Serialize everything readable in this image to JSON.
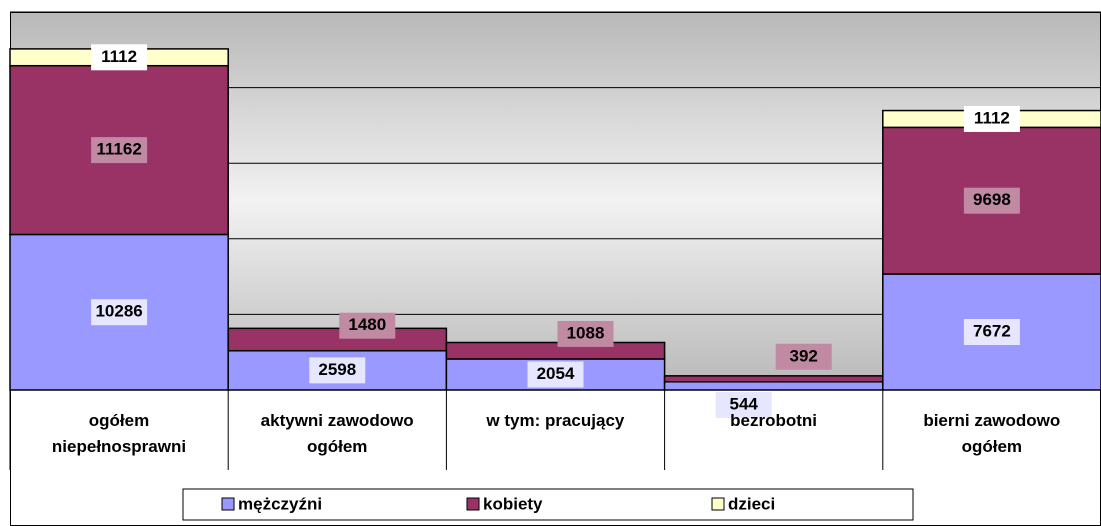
{
  "chart_data": {
    "type": "stacked_bar",
    "categories": [
      "ogółem\nniepełnosprawni",
      "aktywni zawodowo\nogółem",
      "w tym: pracujący",
      "bezrobotni",
      "bierni zawodowo\nogółem"
    ],
    "series": [
      {
        "name": "mężczyźni",
        "color": "#9999ff",
        "values": [
          10286,
          2598,
          2054,
          544,
          7672
        ]
      },
      {
        "name": "kobiety",
        "color": "#993366",
        "values": [
          11162,
          1480,
          1088,
          392,
          9698
        ]
      },
      {
        "name": "dzieci",
        "color": "#ffffcc",
        "values": [
          1112,
          null,
          null,
          null,
          1112
        ]
      }
    ],
    "ylim": [
      0,
      25000
    ],
    "yticks": [
      0,
      5000,
      10000,
      15000,
      20000,
      25000
    ],
    "grid": true
  }
}
